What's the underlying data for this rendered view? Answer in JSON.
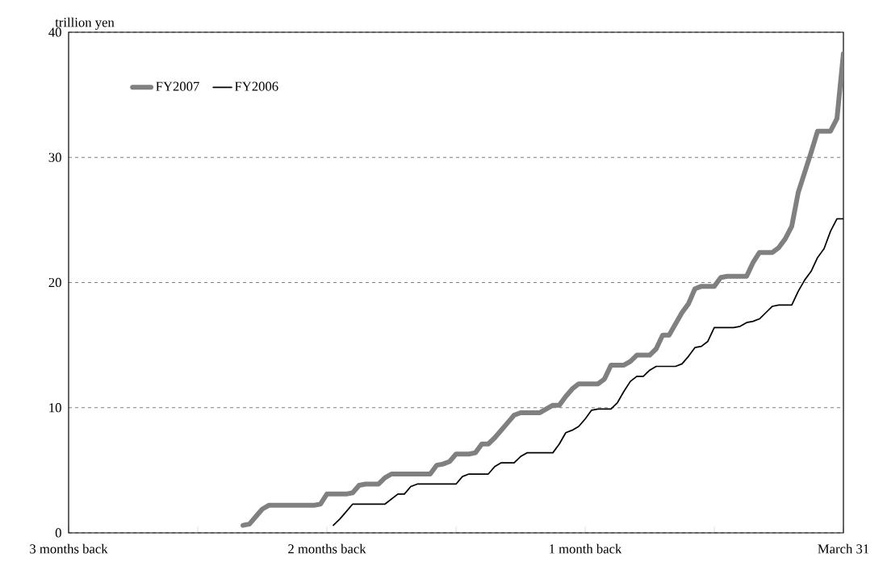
{
  "chart_data": {
    "type": "line",
    "ylabel": "trillion yen",
    "categories": [
      "3 months back",
      null,
      null,
      null,
      null,
      null,
      null,
      null,
      null,
      null,
      null,
      null,
      null,
      null,
      null,
      null,
      null,
      null,
      null,
      null,
      null,
      null,
      null,
      null,
      null,
      null,
      null,
      null,
      null,
      null,
      null,
      null,
      null,
      null,
      null,
      null,
      null,
      null,
      null,
      null,
      "2 months back",
      null,
      null,
      null,
      null,
      null,
      null,
      null,
      null,
      null,
      null,
      null,
      null,
      null,
      null,
      null,
      null,
      null,
      null,
      null,
      null,
      null,
      null,
      null,
      null,
      null,
      null,
      null,
      null,
      null,
      null,
      null,
      null,
      null,
      null,
      null,
      null,
      null,
      null,
      null,
      "1 month back",
      null,
      null,
      null,
      null,
      null,
      null,
      null,
      null,
      null,
      null,
      null,
      null,
      null,
      null,
      null,
      null,
      null,
      null,
      null,
      null,
      null,
      null,
      null,
      null,
      null,
      null,
      null,
      null,
      null,
      null,
      null,
      null,
      null,
      null,
      null,
      null,
      null,
      null,
      null,
      "March 31"
    ],
    "ylim": [
      0,
      40
    ],
    "yticks": [
      0,
      10,
      20,
      30,
      40
    ],
    "grid": "y",
    "legend": "top left",
    "line_style": "solid",
    "marker": "none",
    "series": [
      {
        "name": "FY2007",
        "color": "#808080",
        "values": [
          null,
          null,
          null,
          null,
          null,
          null,
          null,
          null,
          null,
          null,
          null,
          null,
          null,
          null,
          null,
          null,
          null,
          null,
          null,
          null,
          null,
          null,
          null,
          null,
          null,
          null,
          null,
          0.6,
          0.7,
          1.3,
          1.9,
          2.2,
          2.2,
          2.2,
          2.2,
          2.2,
          2.2,
          2.2,
          2.2,
          2.3,
          3.1,
          3.1,
          3.1,
          3.1,
          3.2,
          3.8,
          3.9,
          3.9,
          3.9,
          4.4,
          4.7,
          4.7,
          4.7,
          4.7,
          4.7,
          4.7,
          4.7,
          5.4,
          5.5,
          5.7,
          6.3,
          6.3,
          6.3,
          6.4,
          7.1,
          7.1,
          7.6,
          8.2,
          8.8,
          9.4,
          9.6,
          9.6,
          9.6,
          9.6,
          9.9,
          10.2,
          10.2,
          10.9,
          11.5,
          11.9,
          11.9,
          11.9,
          11.9,
          12.3,
          13.4,
          13.4,
          13.4,
          13.7,
          14.2,
          14.2,
          14.2,
          14.7,
          15.8,
          15.8,
          16.7,
          17.6,
          18.3,
          19.5,
          19.7,
          19.7,
          19.7,
          20.4,
          20.5,
          20.5,
          20.5,
          20.5,
          21.6,
          22.4,
          22.4,
          22.4,
          22.8,
          23.5,
          24.5,
          27.2,
          28.8,
          30.4,
          32.1,
          32.1,
          32.1,
          33.1,
          38.3
        ]
      },
      {
        "name": "FY2006",
        "color": "#000000",
        "values": [
          null,
          null,
          null,
          null,
          null,
          null,
          null,
          null,
          null,
          null,
          null,
          null,
          null,
          null,
          null,
          null,
          null,
          null,
          null,
          null,
          null,
          null,
          null,
          null,
          null,
          null,
          null,
          null,
          null,
          null,
          null,
          null,
          null,
          null,
          null,
          null,
          null,
          null,
          null,
          null,
          null,
          0.6,
          1.1,
          1.7,
          2.3,
          2.3,
          2.3,
          2.3,
          2.3,
          2.3,
          2.7,
          3.1,
          3.1,
          3.7,
          3.9,
          3.9,
          3.9,
          3.9,
          3.9,
          3.9,
          3.9,
          4.5,
          4.7,
          4.7,
          4.7,
          4.7,
          5.3,
          5.6,
          5.6,
          5.6,
          6.1,
          6.4,
          6.4,
          6.4,
          6.4,
          6.4,
          7.1,
          8.0,
          8.2,
          8.5,
          9.1,
          9.8,
          9.9,
          9.9,
          9.9,
          10.4,
          11.3,
          12.1,
          12.5,
          12.5,
          13.0,
          13.3,
          13.3,
          13.3,
          13.3,
          13.5,
          14.1,
          14.8,
          14.9,
          15.3,
          16.4,
          16.4,
          16.4,
          16.4,
          16.5,
          16.8,
          16.9,
          17.1,
          17.6,
          18.1,
          18.2,
          18.2,
          18.2,
          19.3,
          20.2,
          20.9,
          22.0,
          22.7,
          24.1,
          25.1,
          25.1
        ]
      }
    ]
  }
}
